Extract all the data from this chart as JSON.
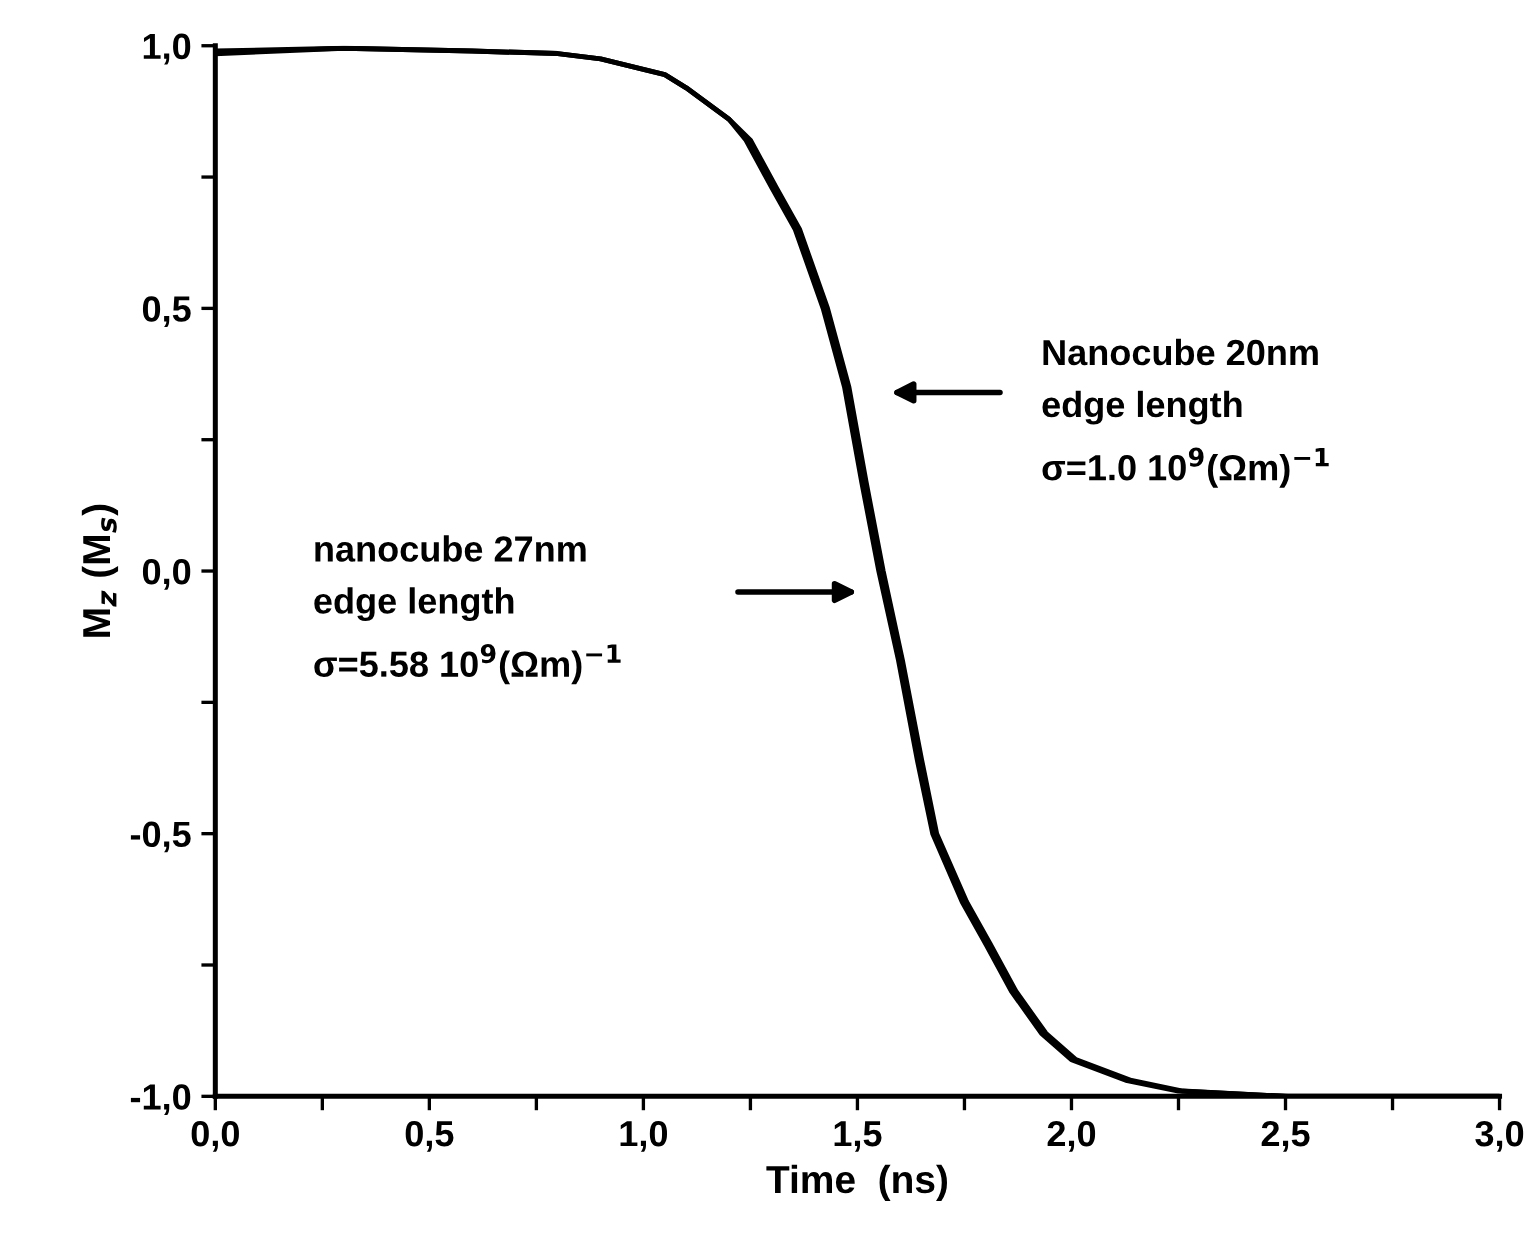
{
  "chart_data": {
    "type": "line",
    "xlabel": "Time  (ns)",
    "ylabel": "M$_{z}$ (M$_{s}$)",
    "series": [
      {
        "color": "#000000",
        "x": [
          0,
          0.3,
          0.6,
          0.8,
          0.9,
          1.0,
          1.05,
          1.1,
          1.2,
          1.24,
          1.3,
          1.355,
          1.42,
          1.47,
          1.51,
          1.55,
          1.596,
          1.64,
          1.676,
          1.745,
          1.8,
          1.86,
          1.93,
          2.0,
          2.13,
          2.25,
          2.5,
          3.0
        ],
        "values": [
          0.99,
          0.995,
          0.99,
          0.985,
          0.975,
          0.955,
          0.945,
          0.92,
          0.86,
          0.82,
          0.73,
          0.65,
          0.5,
          0.35,
          0.17,
          0,
          -0.17,
          -0.36,
          -0.5,
          -0.63,
          -0.71,
          -0.8,
          -0.88,
          -0.93,
          -0.97,
          -0.99,
          -1.0,
          -1.0
        ]
      },
      {
        "color": "#000000",
        "x": [
          0,
          0.3,
          0.6,
          0.8,
          0.9,
          1.0,
          1.05,
          1.1,
          1.2,
          1.25,
          1.31,
          1.365,
          1.43,
          1.48,
          1.52,
          1.56,
          1.605,
          1.65,
          1.685,
          1.755,
          1.81,
          1.87,
          1.94,
          2.01,
          2.14,
          2.26,
          2.5
        ],
        "values": [
          0.985,
          0.995,
          0.99,
          0.985,
          0.975,
          0.955,
          0.945,
          0.92,
          0.86,
          0.82,
          0.73,
          0.65,
          0.5,
          0.35,
          0.17,
          0,
          -0.17,
          -0.36,
          -0.5,
          -0.63,
          -0.71,
          -0.8,
          -0.88,
          -0.93,
          -0.97,
          -0.99,
          -1.0
        ]
      }
    ],
    "annotations": [
      "Nanocube 20nm\nedge length\nσ=1.0 10$^{9}$(Ωm)$^{−1}$",
      "nanocube 27nm\nedge length\nσ=5.58 10$^{9}$(Ωm)$^{−1}$"
    ],
    "xlim": [
      0,
      3.0
    ],
    "ylim": [
      -1.0,
      1.0
    ],
    "xticks": [
      {
        "value": 0,
        "label": "0,0"
      },
      {
        "value": 0.25,
        "label": null
      },
      {
        "value": 0.5,
        "label": "0,5"
      },
      {
        "value": 0.75,
        "label": null
      },
      {
        "value": 1.0,
        "label": "1,0"
      },
      {
        "value": 1.25,
        "label": null
      },
      {
        "value": 1.5,
        "label": "1,5"
      },
      {
        "value": 1.75,
        "label": null
      },
      {
        "value": 2.0,
        "label": "2,0"
      },
      {
        "value": 2.25,
        "label": null
      },
      {
        "value": 2.5,
        "label": "2,5"
      },
      {
        "value": 2.75,
        "label": null
      },
      {
        "value": 3.0,
        "label": "3,0"
      }
    ],
    "yticks": [
      {
        "value": -1.0,
        "label": "-1,0"
      },
      {
        "value": -0.75,
        "label": null
      },
      {
        "value": -0.5,
        "label": "-0,5"
      },
      {
        "value": -0.25,
        "label": null
      },
      {
        "value": 0,
        "label": "0,0"
      },
      {
        "value": 0.25,
        "label": null
      },
      {
        "value": 0.5,
        "label": "0,5"
      },
      {
        "value": 0.75,
        "label": null
      },
      {
        "value": 1.0,
        "label": "1,0"
      }
    ],
    "grid": false,
    "legend": false,
    "marker": "none",
    "line_style": "solid"
  }
}
